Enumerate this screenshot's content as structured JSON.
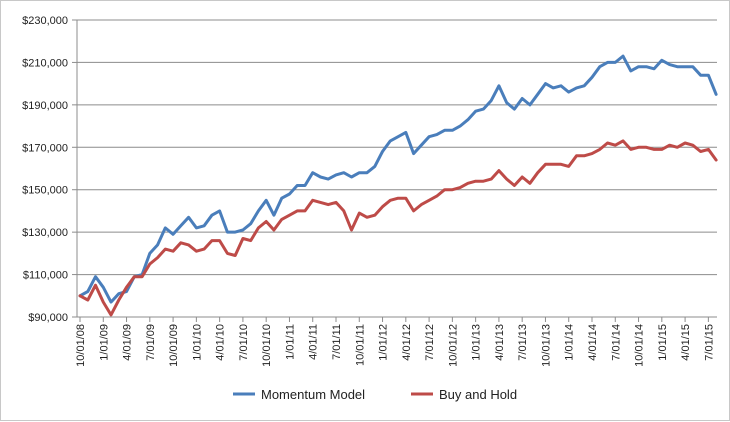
{
  "chart_data": {
    "type": "line",
    "title": "",
    "xlabel": "",
    "ylabel": "",
    "ylim": [
      90000,
      230000
    ],
    "y_ticks": [
      90000,
      110000,
      130000,
      150000,
      170000,
      190000,
      210000,
      230000
    ],
    "y_tick_labels": [
      "$90,000",
      "$110,000",
      "$130,000",
      "$150,000",
      "$170,000",
      "$190,000",
      "$210,000",
      "$230,000"
    ],
    "x_ticks": [
      "10/01/08",
      "1/01/09",
      "4/01/09",
      "7/01/09",
      "10/01/09",
      "1/01/10",
      "4/01/10",
      "7/01/10",
      "10/01/10",
      "1/01/11",
      "4/01/11",
      "7/01/11",
      "10/01/11",
      "1/01/12",
      "4/01/12",
      "7/01/12",
      "10/01/12",
      "1/01/13",
      "4/01/13",
      "7/01/13",
      "10/01/13",
      "1/01/14",
      "4/01/14",
      "7/01/14",
      "10/01/14",
      "1/01/15",
      "4/01/15",
      "7/01/15"
    ],
    "grid": "horizontal",
    "legend": "bottom",
    "x_start": "10/01/08",
    "x_end": "9/01/15",
    "series": [
      {
        "name": "Momentum Model",
        "color": "#4a7ebb",
        "values": [
          100000,
          102000,
          109000,
          104000,
          97000,
          101000,
          102000,
          109000,
          110000,
          120000,
          124000,
          132000,
          129000,
          133000,
          137000,
          132000,
          133000,
          138000,
          140000,
          130000,
          130000,
          131000,
          134000,
          140000,
          145000,
          138000,
          146000,
          148000,
          152000,
          152000,
          158000,
          156000,
          155000,
          157000,
          158000,
          156000,
          158000,
          158000,
          161000,
          168000,
          173000,
          175000,
          177000,
          167000,
          171000,
          175000,
          176000,
          178000,
          178000,
          180000,
          183000,
          187000,
          188000,
          192000,
          199000,
          191000,
          188000,
          193000,
          190000,
          195000,
          200000,
          198000,
          199000,
          196000,
          198000,
          199000,
          203000,
          208000,
          210000,
          210000,
          213000,
          206000,
          208000,
          208000,
          207000,
          211000,
          209000,
          208000,
          208000,
          208000,
          204000,
          204000,
          195000
        ]
      },
      {
        "name": "Buy and Hold",
        "color": "#be4b48",
        "values": [
          100000,
          98000,
          105000,
          97000,
          91000,
          98000,
          104000,
          109000,
          109000,
          115000,
          118000,
          122000,
          121000,
          125000,
          124000,
          121000,
          122000,
          126000,
          126000,
          120000,
          119000,
          127000,
          126000,
          132000,
          135000,
          131000,
          136000,
          138000,
          140000,
          140000,
          145000,
          144000,
          143000,
          144000,
          140000,
          131000,
          139000,
          137000,
          138000,
          142000,
          145000,
          146000,
          146000,
          140000,
          143000,
          145000,
          147000,
          150000,
          150000,
          151000,
          153000,
          154000,
          154000,
          155000,
          159000,
          155000,
          152000,
          156000,
          153000,
          158000,
          162000,
          162000,
          162000,
          161000,
          166000,
          166000,
          167000,
          169000,
          172000,
          171000,
          173000,
          169000,
          170000,
          170000,
          169000,
          169000,
          171000,
          170000,
          172000,
          171000,
          168000,
          169000,
          164000
        ]
      }
    ]
  }
}
